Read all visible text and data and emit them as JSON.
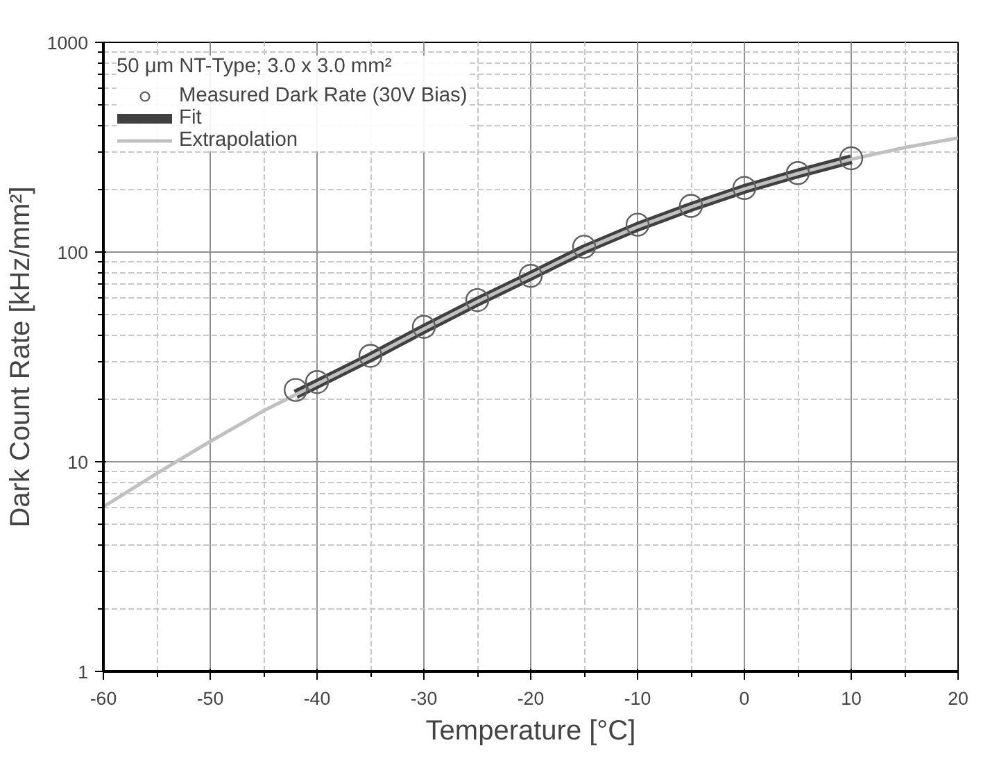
{
  "chart_data": {
    "type": "line",
    "xlabel": "Temperature [°C]",
    "ylabel": "Dark Count Rate [kHz/mm²]",
    "legend_title": "50 μm NT-Type; 3.0 x 3.0 mm²",
    "log": "y",
    "xlim": [
      -60,
      20
    ],
    "ylim": [
      1,
      1000
    ],
    "xticks": [
      -60,
      -50,
      -40,
      -30,
      -20,
      -10,
      0,
      10,
      20
    ],
    "yticks": [
      1,
      10,
      100,
      1000
    ],
    "grid": true,
    "legend": "top left",
    "series": [
      {
        "name": "Fit",
        "type": "line",
        "color": "#404040",
        "x": [
          -42,
          -40,
          -35,
          -30,
          -25,
          -20,
          -15,
          -10,
          -5,
          0,
          5,
          10
        ],
        "values": [
          21,
          23.5,
          31.5,
          43,
          58,
          77,
          103,
          132,
          164,
          200,
          237,
          277
        ]
      },
      {
        "name": "Extrapolation",
        "color": "#c0c0c0",
        "x": [
          -60,
          -55,
          -50,
          -45,
          -40,
          -35,
          -30,
          -25,
          -20,
          -15,
          -10,
          -5,
          0,
          5,
          10,
          15,
          20
        ],
        "values": [
          6.1,
          8.8,
          12.5,
          17.5,
          23.5,
          31.5,
          43,
          58,
          77,
          103,
          132,
          164,
          200,
          237,
          277,
          315,
          350
        ]
      },
      {
        "name": "Measured Dark Rate (30V Bias)",
        "type": "scatter",
        "marker": "circle",
        "color": "#606060",
        "x": [
          -42,
          -40,
          -35,
          -30,
          -25,
          -20,
          -15,
          -10,
          -5,
          0,
          5,
          10
        ],
        "values": [
          22,
          24,
          32,
          44,
          59,
          77,
          106,
          135,
          166,
          202,
          238,
          280
        ]
      }
    ]
  }
}
